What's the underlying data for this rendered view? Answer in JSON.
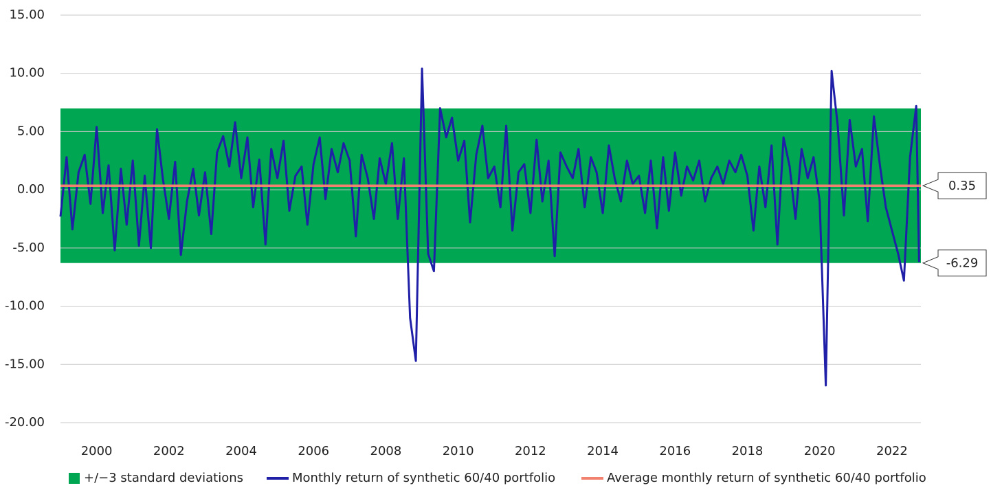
{
  "chart_data": {
    "type": "line",
    "x": [
      1999.0,
      1999.17,
      1999.33,
      1999.5,
      1999.67,
      1999.83,
      2000.0,
      2000.17,
      2000.33,
      2000.5,
      2000.67,
      2000.83,
      2001.0,
      2001.17,
      2001.33,
      2001.5,
      2001.67,
      2001.83,
      2002.0,
      2002.17,
      2002.33,
      2002.5,
      2002.67,
      2002.83,
      2003.0,
      2003.17,
      2003.33,
      2003.5,
      2003.67,
      2003.83,
      2004.0,
      2004.17,
      2004.33,
      2004.5,
      2004.67,
      2004.83,
      2005.0,
      2005.17,
      2005.33,
      2005.5,
      2005.67,
      2005.83,
      2006.0,
      2006.17,
      2006.33,
      2006.5,
      2006.67,
      2006.83,
      2007.0,
      2007.17,
      2007.33,
      2007.5,
      2007.67,
      2007.83,
      2008.0,
      2008.17,
      2008.33,
      2008.5,
      2008.67,
      2008.83,
      2009.0,
      2009.17,
      2009.33,
      2009.5,
      2009.67,
      2009.83,
      2010.0,
      2010.17,
      2010.33,
      2010.5,
      2010.67,
      2010.83,
      2011.0,
      2011.17,
      2011.33,
      2011.5,
      2011.67,
      2011.83,
      2012.0,
      2012.17,
      2012.33,
      2012.5,
      2012.67,
      2012.83,
      2013.0,
      2013.17,
      2013.33,
      2013.5,
      2013.67,
      2013.83,
      2014.0,
      2014.17,
      2014.33,
      2014.5,
      2014.67,
      2014.83,
      2015.0,
      2015.17,
      2015.33,
      2015.5,
      2015.67,
      2015.83,
      2016.0,
      2016.17,
      2016.33,
      2016.5,
      2016.67,
      2016.83,
      2017.0,
      2017.17,
      2017.33,
      2017.5,
      2017.67,
      2017.83,
      2018.0,
      2018.17,
      2018.33,
      2018.5,
      2018.67,
      2018.83,
      2019.0,
      2019.17,
      2019.33,
      2019.5,
      2019.67,
      2019.83,
      2020.0,
      2020.17,
      2020.33,
      2020.5,
      2020.67,
      2020.83,
      2021.0,
      2021.17,
      2021.33,
      2021.5,
      2021.67,
      2021.83,
      2022.0,
      2022.17,
      2022.33,
      2022.5,
      2022.67,
      2022.75
    ],
    "series": [
      {
        "name": "Monthly return of synthetic 60/40 portfolio",
        "color": "#1f1fa8",
        "values": [
          -2.3,
          2.8,
          -3.4,
          1.5,
          3.0,
          -1.2,
          5.4,
          -2.0,
          2.1,
          -5.2,
          1.8,
          -3.0,
          2.5,
          -4.8,
          1.2,
          -5.0,
          5.2,
          1.0,
          -2.5,
          2.4,
          -5.6,
          -1.0,
          1.8,
          -2.2,
          1.5,
          -3.8,
          3.2,
          4.6,
          2.0,
          5.8,
          1.0,
          4.5,
          -1.5,
          2.6,
          -4.7,
          3.5,
          1.0,
          4.2,
          -1.8,
          1.2,
          2.0,
          -3.0,
          2.2,
          4.5,
          -0.8,
          3.5,
          1.5,
          4.0,
          2.5,
          -4.0,
          3.0,
          1.0,
          -2.5,
          2.7,
          0.5,
          4.0,
          -2.5,
          2.7,
          -11.0,
          -14.7,
          10.4,
          -5.5,
          -7.0,
          7.0,
          4.5,
          6.2,
          2.5,
          4.2,
          -2.8,
          3.0,
          5.5,
          1.0,
          2.0,
          -1.5,
          5.5,
          -3.5,
          1.5,
          2.2,
          -2.0,
          4.3,
          -1.0,
          2.5,
          -5.7,
          3.2,
          2.0,
          1.0,
          3.5,
          -1.5,
          2.8,
          1.5,
          -2.0,
          3.8,
          1.0,
          -1.0,
          2.5,
          0.5,
          1.2,
          -2.0,
          2.5,
          -3.3,
          2.8,
          -1.8,
          3.2,
          -0.5,
          2.0,
          0.8,
          2.5,
          -1.0,
          1.0,
          2.0,
          0.5,
          2.5,
          1.5,
          3.0,
          1.2,
          -3.5,
          2.0,
          -1.5,
          3.8,
          -4.7,
          4.5,
          2.0,
          -2.5,
          3.5,
          1.0,
          2.8,
          -1.0,
          -16.8,
          10.2,
          5.5,
          -2.2,
          6.0,
          2.0,
          3.5,
          -2.7,
          6.3,
          2.0,
          -1.5,
          -3.5,
          -5.5,
          -7.8,
          2.8,
          7.2,
          -6.2
        ]
      },
      {
        "name": "Average monthly return of synthetic 60/40 portfolio",
        "color": "#f2826f",
        "value": 0.35
      }
    ],
    "band": {
      "name": "+/−3 standard deviations",
      "color": "#00a651",
      "low": -6.29,
      "high": 6.99
    },
    "xlim": [
      1999,
      2022.8
    ],
    "xticks": [
      2000,
      2002,
      2004,
      2006,
      2008,
      2010,
      2012,
      2014,
      2016,
      2018,
      2020,
      2022
    ],
    "ylim": [
      -20,
      15
    ],
    "yticks": [
      {
        "value": -20,
        "label": "-20.00"
      },
      {
        "value": -15,
        "label": "-15.00"
      },
      {
        "value": -10,
        "label": "-10.00"
      },
      {
        "value": -5,
        "label": "-5.00"
      },
      {
        "value": 0,
        "label": "0.00"
      },
      {
        "value": 5,
        "label": "5.00"
      },
      {
        "value": 10,
        "label": "10.00"
      },
      {
        "value": 15,
        "label": "15.00"
      }
    ],
    "grid": true,
    "legend": "bottom"
  }
}
